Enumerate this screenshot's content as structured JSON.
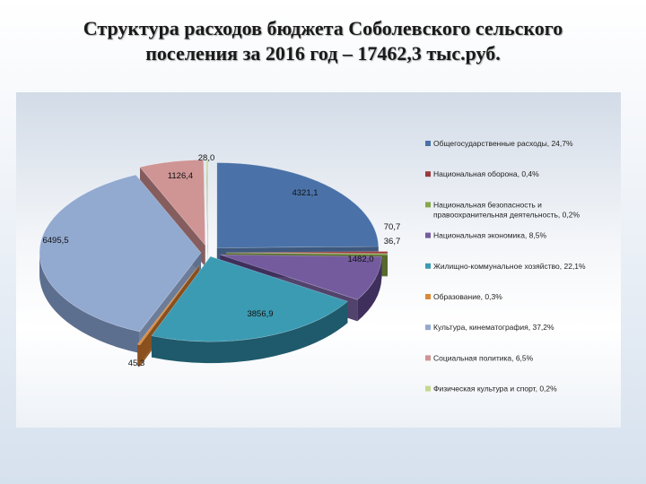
{
  "title_line1": "Структура расходов бюджета  Соболевского сельского",
  "title_line2": "поселения за 2016 год – 17462,3 тыс.руб.",
  "chart_data": {
    "type": "pie",
    "three_d": true,
    "legend_position": "right",
    "slices": [
      {
        "label": "Общегосударственные расходы, 24,7%",
        "value": 4321.1,
        "value_label": "4321,1",
        "color": "#4a72a9",
        "side": "#2a4770"
      },
      {
        "label": "Национальная оборона, 0,4%",
        "value": 70.7,
        "value_label": "70,7",
        "color": "#9b3a3a",
        "side": "#5e2020"
      },
      {
        "label": "Национальная безопасность и правоохранительная деятельность, 0,2%",
        "value": 36.7,
        "value_label": "36,7",
        "color": "#86a84a",
        "side": "#556a2c"
      },
      {
        "label": "Национальная экономика, 8,5%",
        "value": 1482.0,
        "value_label": "1482,0",
        "color": "#745b9e",
        "side": "#3f2f5c"
      },
      {
        "label": "Жилищно-коммунальное хозяйство, 22,1%",
        "value": 3856.9,
        "value_label": "3856,9",
        "color": "#3b9bb3",
        "side": "#1e5a6b"
      },
      {
        "label": "Образование, 0,3%",
        "value": 45.3,
        "value_label": "45,3",
        "color": "#db8a3b",
        "side": "#8a4f1c"
      },
      {
        "label": "Культура, кинематография, 37,2%",
        "value": 6495.5,
        "value_label": "6495,5",
        "color": "#92a9d0",
        "side": "#5d6f8e"
      },
      {
        "label": "Социальная политика, 6,5%",
        "value": 1126.4,
        "value_label": "1126,4",
        "color": "#cf9494",
        "side": "#7a4c4c"
      },
      {
        "label": "Физическая культура и спорт, 0,2%",
        "value": 28.0,
        "value_label": "28,0",
        "color": "#c4d98e",
        "side": "#7f8f55"
      }
    ]
  }
}
